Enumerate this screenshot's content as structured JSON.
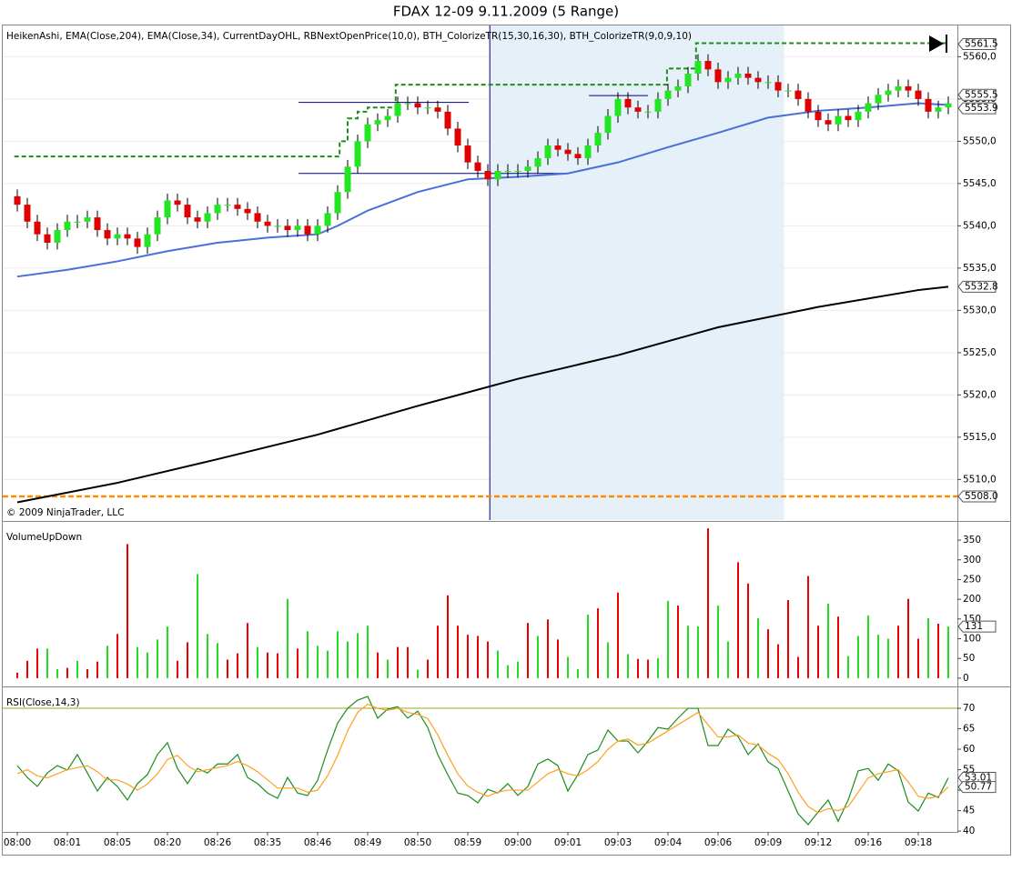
{
  "title": "FDAX 12-09  9.11.2009 (5 Range)",
  "copyright": "© 2009 NinjaTrader, LLC",
  "chart_data": [
    {
      "type": "candlestick",
      "label": "HeikenAshi, EMA(Close,204), EMA(Close,34), CurrentDayOHL, RBNextOpenPrice(10,0), BTH_ColorizeTR(15,30,16,30), BTH_ColorizeTR(9,0,9,10)",
      "open": [
        5543.5,
        5542.5,
        5540.5,
        5539,
        5538,
        5539.5,
        5540.5,
        5540.5,
        5541,
        5539.5,
        5538.5,
        5539,
        5538.5,
        5537.5,
        5539,
        5541,
        5543,
        5542.5,
        5541,
        5540.5,
        5541.5,
        5542.5,
        5542.5,
        5542,
        5541.5,
        5540.5,
        5540,
        5540,
        5539.5,
        5540,
        5539,
        5540,
        5541.5,
        5544,
        5547,
        5550,
        5552,
        5552.5,
        5553,
        5554.5,
        5554.5,
        5554,
        5554,
        5553.5,
        5551.5,
        5549.5,
        5547.5,
        5546.5,
        5545.5,
        5546.5,
        5546.5,
        5546.5,
        5547,
        5548,
        5549.5,
        5549,
        5548.5,
        5548,
        5549.5,
        5551,
        5553,
        5555,
        5554,
        5553.5,
        5553.5,
        5555,
        5556,
        5556.5,
        5558,
        5559.5,
        5558.5,
        5557,
        5557.5,
        5558,
        5557.5,
        5557,
        5557,
        5556,
        5556,
        5555,
        5553.5,
        5552.5,
        5552,
        5553,
        5552.5,
        5553.5,
        5554.5,
        5555.5,
        5556,
        5556.5,
        5556,
        5555,
        5553.5,
        5554
      ],
      "high": [
        5544.3,
        5543.3,
        5541.3,
        5539.8,
        5540.3,
        5541.3,
        5541.3,
        5541.8,
        5541.8,
        5540.3,
        5539.8,
        5539.8,
        5539.3,
        5539.8,
        5541.8,
        5543.8,
        5543.8,
        5543.3,
        5541.8,
        5542.3,
        5543.3,
        5543.3,
        5543.3,
        5542.8,
        5542.3,
        5541.3,
        5540.8,
        5540.8,
        5540.8,
        5540.8,
        5540.8,
        5542.3,
        5544.8,
        5547.8,
        5550.8,
        5552.8,
        5553.3,
        5553.8,
        5555.3,
        5555.3,
        5555.3,
        5554.8,
        5554.8,
        5554.3,
        5552.3,
        5550.3,
        5548.3,
        5547.3,
        5547.3,
        5547.3,
        5547.3,
        5547.8,
        5548.8,
        5550.3,
        5550.3,
        5549.8,
        5549.3,
        5550.3,
        5551.8,
        5553.8,
        5555.8,
        5555.8,
        5554.8,
        5554.3,
        5555.8,
        5556.8,
        5557.3,
        5558.8,
        5560.3,
        5560.3,
        5559.3,
        5558.3,
        5558.8,
        5558.8,
        5558.3,
        5557.8,
        5557.8,
        5556.8,
        5556.8,
        5555.8,
        5554.3,
        5553.3,
        5553.8,
        5553.8,
        5554.3,
        5555.3,
        5556.3,
        5556.8,
        5557.3,
        5557.3,
        5556.8,
        5555.8,
        5554.8,
        5555.3
      ],
      "low": [
        5541.7,
        5539.7,
        5538.2,
        5537.2,
        5537.2,
        5538.7,
        5539.7,
        5539.7,
        5538.7,
        5537.7,
        5537.7,
        5537.7,
        5536.7,
        5536.7,
        5538.2,
        5540.2,
        5541.7,
        5540.2,
        5539.7,
        5539.7,
        5540.7,
        5541.7,
        5541.2,
        5540.7,
        5539.7,
        5539.2,
        5539.2,
        5538.7,
        5538.7,
        5538.2,
        5538.2,
        5539.2,
        5540.7,
        5543.2,
        5546.2,
        5549.2,
        5551.2,
        5551.7,
        5552.2,
        5553.7,
        5553.2,
        5553.2,
        5552.7,
        5550.7,
        5548.7,
        5546.7,
        5545.7,
        5544.7,
        5544.7,
        5545.7,
        5545.7,
        5545.7,
        5546.2,
        5547.2,
        5548.2,
        5547.7,
        5547.2,
        5547.2,
        5548.7,
        5550.2,
        5552.2,
        5553.2,
        5552.7,
        5552.7,
        5552.7,
        5554.2,
        5555.2,
        5555.7,
        5557.2,
        5557.7,
        5556.2,
        5556.2,
        5556.7,
        5556.7,
        5556.2,
        5556.2,
        5555.2,
        5555.2,
        5554.2,
        5552.7,
        5551.7,
        5551.2,
        5551.2,
        5551.7,
        5551.7,
        5552.7,
        5553.7,
        5554.7,
        5555.2,
        5555.2,
        5554.2,
        5552.7,
        5552.7,
        5553.2
      ],
      "close": [
        5542.5,
        5540.5,
        5539,
        5538,
        5539.5,
        5540.5,
        5540.5,
        5541,
        5539.5,
        5538.5,
        5539,
        5538.5,
        5537.5,
        5539,
        5541,
        5543,
        5542.5,
        5541,
        5540.5,
        5541.5,
        5542.5,
        5542.5,
        5542,
        5541.5,
        5540.5,
        5540,
        5540,
        5539.5,
        5540,
        5539,
        5540,
        5541.5,
        5544,
        5547,
        5550,
        5552,
        5552.5,
        5553,
        5554.5,
        5554.5,
        5554,
        5554,
        5553.5,
        5551.5,
        5549.5,
        5547.5,
        5546.5,
        5545.5,
        5546.5,
        5546.5,
        5546.5,
        5547,
        5548,
        5549.5,
        5549,
        5548.5,
        5548,
        5549.5,
        5551,
        5553,
        5555,
        5554,
        5553.5,
        5553.5,
        5555,
        5556,
        5556.5,
        5558,
        5559.5,
        5558.5,
        5557,
        5557.5,
        5558,
        5557.5,
        5557,
        5557,
        5556,
        5556,
        5555,
        5553.5,
        5552.5,
        5552,
        5553,
        5552.5,
        5553.5,
        5554.5,
        5555.5,
        5556,
        5556.5,
        5556,
        5555,
        5553.5,
        5554,
        5554.5
      ],
      "up_color": "#22e622",
      "down_color": "#e00000",
      "ylim": [
        5505.2,
        5563.7
      ],
      "yticks": [
        {
          "value": 5510,
          "label": "5510,0"
        },
        {
          "value": 5515,
          "label": "5515,0"
        },
        {
          "value": 5520,
          "label": "5520,0"
        },
        {
          "value": 5525,
          "label": "5525,0"
        },
        {
          "value": 5530,
          "label": "5530,0"
        },
        {
          "value": 5535,
          "label": "5535,0"
        },
        {
          "value": 5540,
          "label": "5540,0"
        },
        {
          "value": 5545,
          "label": "5545,0"
        },
        {
          "value": 5550,
          "label": "5550,0"
        },
        {
          "value": 5555,
          "label": "5555,0"
        },
        {
          "value": 5560,
          "label": "5560,0"
        }
      ],
      "grid": true,
      "highlight": [
        47.2,
        76.6
      ],
      "lines": [
        {
          "color": "#4a6fd8",
          "x": [
            0,
            5,
            10,
            15,
            20,
            25,
            30,
            32,
            35,
            40,
            45,
            50,
            55,
            60,
            65,
            70,
            75,
            80,
            85,
            90,
            93
          ],
          "values": [
            5534.0,
            5534.8,
            5535.8,
            5537.0,
            5538.0,
            5538.6,
            5539.0,
            5540.0,
            5541.8,
            5544.0,
            5545.5,
            5545.8,
            5546.2,
            5547.5,
            5549.3,
            5551.0,
            5552.8,
            5553.6,
            5554.0,
            5554.5,
            5554.3
          ]
        },
        {
          "color": "#000000",
          "x": [
            0,
            10,
            20,
            30,
            40,
            50,
            60,
            70,
            80,
            90,
            93
          ],
          "values": [
            5507.3,
            5509.6,
            5512.4,
            5515.3,
            5518.7,
            5521.9,
            5524.7,
            5528.0,
            5530.4,
            5532.4,
            5532.8
          ]
        }
      ],
      "levels": [
        {
          "color": "#1e8c1e",
          "dash": true,
          "x": [
            -0.3,
            32.2,
            32.2,
            33,
            33,
            34,
            34,
            35,
            35,
            37.8,
            37.8,
            64.9,
            64.9,
            67.8,
            67.8,
            92.8
          ],
          "values": [
            5548.2,
            5548.2,
            5550,
            5550,
            5552.7,
            5552.7,
            5553.5,
            5553.5,
            5554,
            5554,
            5556.7,
            5556.7,
            5558.6,
            5558.6,
            5561.6,
            5561.6
          ]
        },
        {
          "color": "#000080",
          "dash": false,
          "x": [
            28.1,
            45.1
          ],
          "values": [
            5554.6,
            5554.6
          ]
        },
        {
          "color": "#000080",
          "dash": false,
          "x": [
            28.1,
            55.1
          ],
          "values": [
            5546.2,
            5546.2
          ]
        },
        {
          "color": "#000080",
          "dash": false,
          "x": [
            57.1,
            63.0
          ],
          "values": [
            5555.4,
            5555.4
          ]
        }
      ],
      "hlines": [
        {
          "value": 5508,
          "color": "#ff8c00"
        }
      ],
      "markers": [
        5561.5,
        5555.5,
        5553.9,
        5532.8,
        {
          "value": 5508,
          "label": "5508.0"
        }
      ]
    },
    {
      "type": "bar",
      "label": "VolumeUpDown",
      "values": [
        14,
        44,
        75,
        75,
        23,
        26,
        44,
        23,
        42,
        82,
        112,
        340,
        79,
        65,
        98,
        131,
        44,
        91,
        264,
        112,
        89,
        47,
        63,
        140,
        79,
        65,
        63,
        201,
        75,
        119,
        82,
        70,
        119,
        93,
        114,
        133,
        65,
        47,
        79,
        79,
        21,
        47,
        133,
        210,
        133,
        110,
        107,
        93,
        70,
        33,
        42,
        140,
        107,
        149,
        98,
        54,
        23,
        161,
        177,
        91,
        217,
        61,
        49,
        47,
        51,
        196,
        184,
        133,
        131,
        380,
        184,
        93,
        294,
        240,
        152,
        124,
        86,
        198,
        54,
        259,
        133,
        189,
        156,
        56,
        107,
        159,
        110,
        100,
        133,
        201,
        100,
        152,
        138,
        131
      ],
      "colors": [
        "#e00",
        "#e00",
        "#e00",
        "#2d2",
        "#2d2",
        "#e00",
        "#2d2",
        "#e00",
        "#e00",
        "#2d2",
        "#e00",
        "#e00",
        "#2d2",
        "#2d2",
        "#2d2",
        "#2d2",
        "#e00",
        "#e00",
        "#2d2",
        "#2d2",
        "#2d2",
        "#e00",
        "#e00",
        "#e00",
        "#2d2",
        "#e00",
        "#e00",
        "#2d2",
        "#e00",
        "#2d2",
        "#2d2",
        "#2d2",
        "#2d2",
        "#2d2",
        "#2d2",
        "#2d2",
        "#e00",
        "#2d2",
        "#e00",
        "#e00",
        "#2d2",
        "#e00",
        "#e00",
        "#e00",
        "#e00",
        "#e00",
        "#e00",
        "#e00",
        "#2d2",
        "#2d2",
        "#2d2",
        "#e00",
        "#2d2",
        "#e00",
        "#e00",
        "#2d2",
        "#2d2",
        "#2d2",
        "#e00",
        "#2d2",
        "#e00",
        "#2d2",
        "#e00",
        "#e00",
        "#2d2",
        "#2d2",
        "#e00",
        "#2d2",
        "#2d2",
        "#e00",
        "#2d2",
        "#2d2",
        "#e00",
        "#e00",
        "#2d2",
        "#e00",
        "#e00",
        "#e00",
        "#e00",
        "#e00",
        "#e00",
        "#2d2",
        "#e00",
        "#2d2",
        "#2d2",
        "#2d2",
        "#2d2",
        "#2d2",
        "#e00",
        "#e00",
        "#e00",
        "#2d2",
        "#e00",
        "#2d2"
      ],
      "ylim": [
        -21,
        394
      ],
      "yticks": [
        0,
        50,
        100,
        150,
        200,
        250,
        300,
        350
      ],
      "markers": [
        131
      ]
    },
    {
      "type": "line",
      "label": "RSI(Close,14,3)",
      "categories": [
        "08:00",
        null,
        null,
        null,
        null,
        "08:01",
        null,
        null,
        null,
        null,
        "08:05",
        null,
        null,
        null,
        null,
        "08:20",
        null,
        null,
        null,
        null,
        "08:26",
        null,
        null,
        null,
        null,
        "08:35",
        null,
        null,
        null,
        null,
        "08:46",
        null,
        null,
        null,
        null,
        "08:49",
        null,
        null,
        null,
        null,
        "08:50",
        null,
        null,
        null,
        null,
        "08:59",
        null,
        null,
        null,
        null,
        "09:00",
        null,
        null,
        null,
        null,
        "09:01",
        null,
        null,
        null,
        null,
        "09:03",
        null,
        null,
        null,
        null,
        "09:04",
        null,
        null,
        null,
        null,
        "09:06",
        null,
        null,
        null,
        null,
        "09:09",
        null,
        null,
        null,
        null,
        "09:12",
        null,
        null,
        null,
        null,
        "09:16",
        null,
        null,
        null,
        null,
        "09:18",
        null,
        null,
        null
      ],
      "series": [
        {
          "color": "#1e8c1e",
          "values": [
            56,
            53.1,
            50.9,
            54.2,
            56,
            54.9,
            58.7,
            54.2,
            49.8,
            53.1,
            50.9,
            47.6,
            51.6,
            53.8,
            58.7,
            61.6,
            55.3,
            51.6,
            55.3,
            54.2,
            56.4,
            56.4,
            58.7,
            53.1,
            51.6,
            49.3,
            48,
            53.1,
            49.3,
            48.7,
            52.4,
            59.8,
            66.4,
            70,
            72,
            72.9,
            67.6,
            69.8,
            70.4,
            67.6,
            69.3,
            65.3,
            58.7,
            53.8,
            49.3,
            48.7,
            46.9,
            50.2,
            49.3,
            51.6,
            48.7,
            50.9,
            56.4,
            57.6,
            56,
            49.8,
            53.8,
            58.7,
            59.8,
            64.7,
            62,
            62,
            59.1,
            62,
            65.3,
            64.9,
            67.6,
            70,
            70,
            60.9,
            60.9,
            64.9,
            63.1,
            58.7,
            61.3,
            56.9,
            55.3,
            49.8,
            44.2,
            41.6,
            44.7,
            47.6,
            42.4,
            47.6,
            54.7,
            55.3,
            52.4,
            56.4,
            54.7,
            47.1,
            44.9,
            49.3,
            48.2,
            53.01
          ]
        },
        {
          "color": "#ffa020",
          "values": [
            54,
            55,
            53.5,
            53,
            54,
            55,
            55.5,
            56,
            54.5,
            52.5,
            52.5,
            51.5,
            50,
            51.5,
            54,
            57.5,
            58.5,
            56,
            54.5,
            55,
            55.5,
            56,
            57,
            56,
            54.5,
            52.5,
            50.5,
            50.5,
            50.5,
            49.5,
            50,
            53.5,
            58.5,
            64.5,
            69,
            71,
            70,
            69.5,
            70,
            69,
            68.5,
            67.5,
            63.5,
            58.5,
            54,
            51,
            49.5,
            48.5,
            49.5,
            50,
            50,
            50,
            52,
            54,
            55,
            54,
            53.5,
            55,
            57,
            60,
            62,
            62.5,
            61,
            61.5,
            63,
            64.5,
            66,
            67.5,
            69,
            66,
            63,
            63,
            63.5,
            61.5,
            61,
            59,
            57.5,
            54,
            49.5,
            46,
            44.5,
            45.5,
            45,
            46,
            49.5,
            53,
            54,
            54.5,
            55,
            52,
            48.5,
            48,
            48.5,
            50.77
          ]
        }
      ],
      "hline": {
        "value": 70,
        "color": "#a0a020"
      },
      "ylim": [
        39.8,
        74.9
      ],
      "yticks": [
        40,
        45,
        50,
        55,
        60,
        65,
        70
      ],
      "markers": [
        53.01,
        50.77
      ]
    }
  ]
}
